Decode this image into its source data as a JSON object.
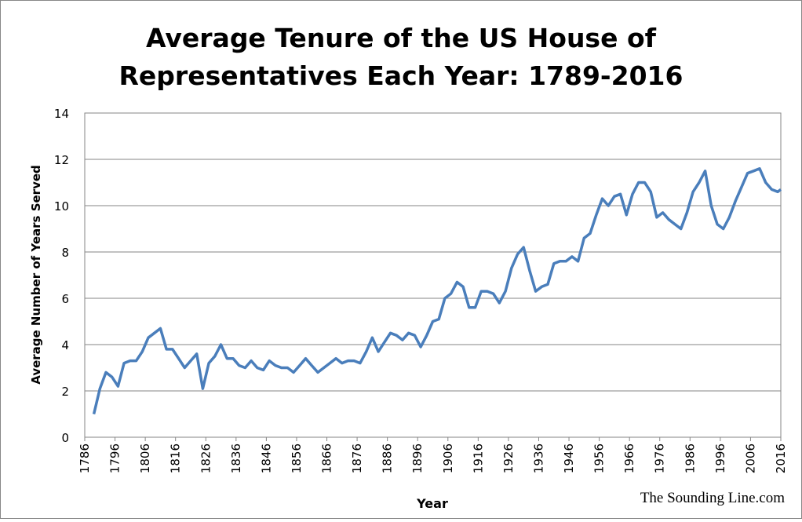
{
  "chart_data": {
    "type": "line",
    "title": [
      "Average Tenure of the US House of",
      "Representatives Each Year: 1789-2016"
    ],
    "ylabel": "Average Number of Years Served",
    "xlabel": "Year",
    "watermark": "The Sounding Line.com",
    "xlim": [
      1786,
      2016
    ],
    "xticks": [
      1786,
      1796,
      1806,
      1816,
      1826,
      1836,
      1846,
      1856,
      1866,
      1876,
      1886,
      1896,
      1906,
      1916,
      1926,
      1936,
      1946,
      1956,
      1966,
      1976,
      1986,
      1996,
      2006,
      2016
    ],
    "ylim": [
      0,
      14
    ],
    "yticks": [
      0,
      2,
      4,
      6,
      8,
      10,
      12,
      14
    ],
    "grid": true,
    "x": [
      1789,
      1791,
      1793,
      1795,
      1797,
      1799,
      1801,
      1803,
      1805,
      1807,
      1809,
      1811,
      1813,
      1815,
      1817,
      1819,
      1821,
      1823,
      1825,
      1827,
      1829,
      1831,
      1833,
      1835,
      1837,
      1839,
      1841,
      1843,
      1845,
      1847,
      1849,
      1851,
      1853,
      1855,
      1857,
      1859,
      1861,
      1863,
      1865,
      1867,
      1869,
      1871,
      1873,
      1875,
      1877,
      1879,
      1881,
      1883,
      1885,
      1887,
      1889,
      1891,
      1893,
      1895,
      1897,
      1899,
      1901,
      1903,
      1905,
      1907,
      1909,
      1911,
      1913,
      1915,
      1917,
      1919,
      1921,
      1923,
      1925,
      1927,
      1929,
      1931,
      1933,
      1935,
      1937,
      1939,
      1941,
      1943,
      1945,
      1947,
      1949,
      1951,
      1953,
      1955,
      1957,
      1959,
      1961,
      1963,
      1965,
      1967,
      1969,
      1971,
      1973,
      1975,
      1977,
      1979,
      1981,
      1983,
      1985,
      1987,
      1989,
      1991,
      1993,
      1995,
      1997,
      1999,
      2001,
      2003,
      2005,
      2007,
      2009,
      2011,
      2013,
      2015,
      2016
    ],
    "series": [
      {
        "name": "Average tenure",
        "color": "#4a7ebb",
        "values": [
          1.0,
          2.1,
          2.8,
          2.6,
          2.2,
          3.2,
          3.3,
          3.3,
          3.7,
          4.3,
          4.5,
          4.7,
          3.8,
          3.8,
          3.4,
          3.0,
          3.3,
          3.6,
          2.1,
          3.2,
          3.5,
          4.0,
          3.4,
          3.4,
          3.1,
          3.0,
          3.3,
          3.0,
          2.9,
          3.3,
          3.1,
          3.0,
          3.0,
          2.8,
          3.1,
          3.4,
          3.1,
          2.8,
          3.0,
          3.2,
          3.4,
          3.2,
          3.3,
          3.3,
          3.2,
          3.7,
          4.3,
          3.7,
          4.1,
          4.5,
          4.4,
          4.2,
          4.5,
          4.4,
          3.9,
          4.4,
          5.0,
          5.1,
          6.0,
          6.2,
          6.7,
          6.5,
          5.6,
          5.6,
          6.3,
          6.3,
          6.2,
          5.8,
          6.3,
          7.3,
          7.9,
          8.2,
          7.2,
          6.3,
          6.5,
          6.6,
          7.5,
          7.6,
          7.6,
          7.8,
          7.6,
          8.6,
          8.8,
          9.6,
          10.3,
          10.0,
          10.4,
          10.5,
          9.6,
          10.5,
          11.0,
          11.0,
          10.6,
          9.5,
          9.7,
          9.4,
          9.2,
          9.0,
          9.7,
          10.6,
          11.0,
          11.5,
          10.0,
          9.2,
          9.0,
          9.5,
          10.2,
          10.8,
          11.4,
          11.5,
          11.6,
          11.0,
          10.7,
          10.6,
          10.7
        ]
      }
    ]
  }
}
